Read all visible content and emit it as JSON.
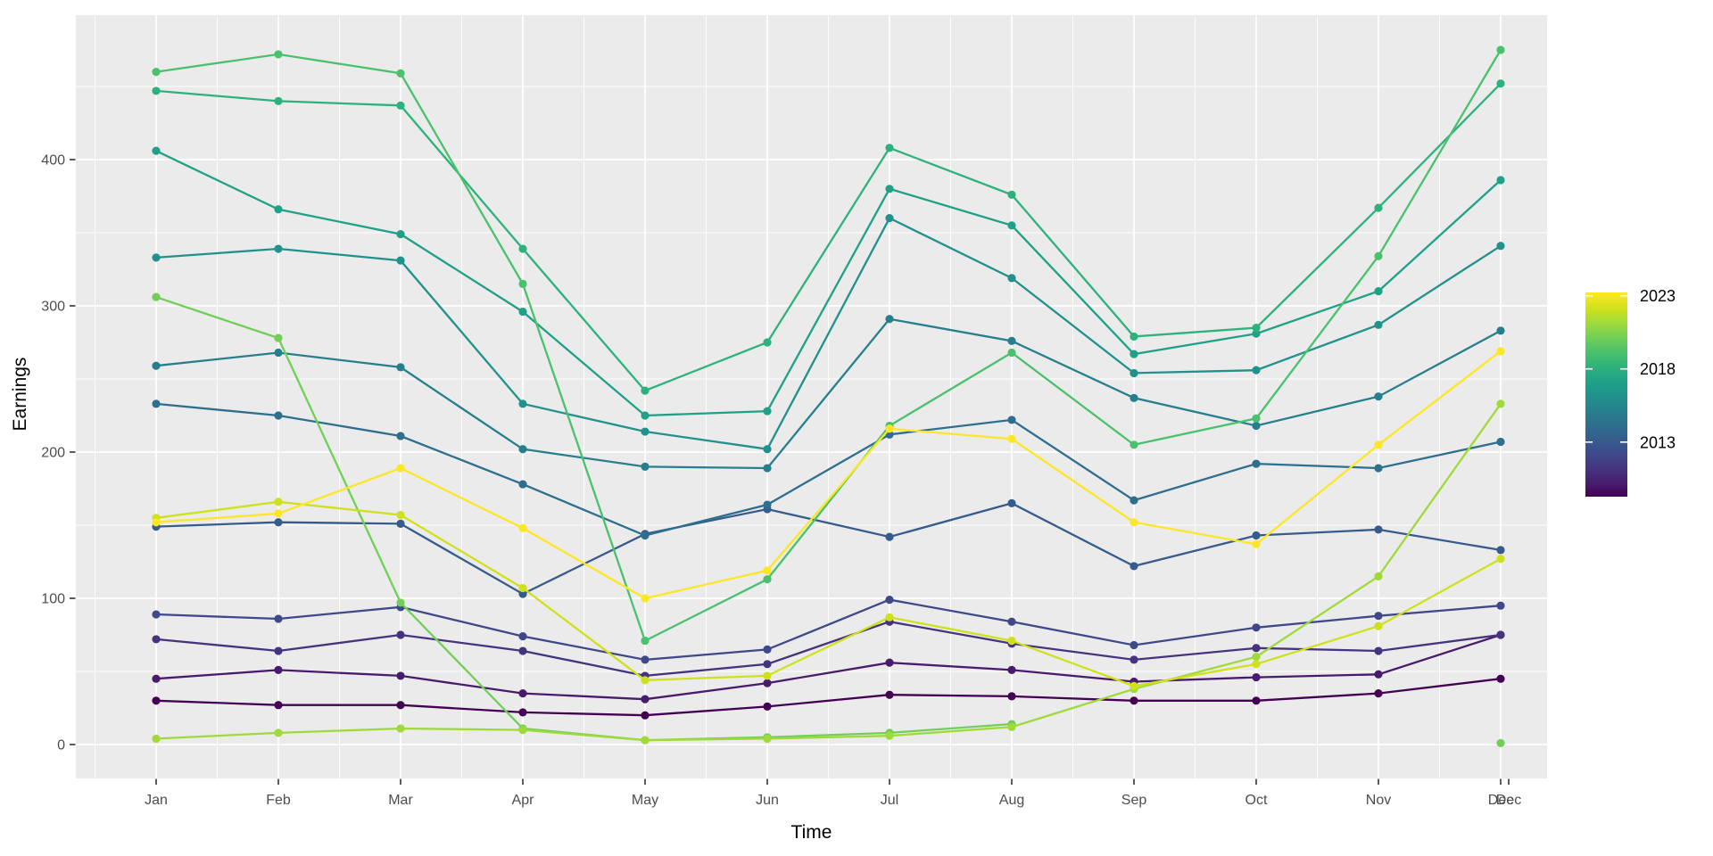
{
  "figure": {
    "background": "#ffffff",
    "panel_background": "#ebebeb",
    "grid_color": "#ffffff",
    "tick_label_color": "#4d4d4d",
    "axis_title_color": "#000000"
  },
  "chart_data": {
    "type": "line",
    "title": "",
    "xlabel": "Time",
    "ylabel": "Earnings",
    "grid": "on",
    "categories": [
      "Jan",
      "Feb",
      "Mar",
      "Apr",
      "May",
      "Jun",
      "Jul",
      "Aug",
      "Sep",
      "Oct",
      "Nov",
      "Dec"
    ],
    "extra_x_tick_label": "Dec",
    "y_ticks": [
      0,
      100,
      200,
      300,
      400
    ],
    "ylim": [
      -23,
      499
    ],
    "legend_position": "right",
    "legend": {
      "tick_labels": [
        "2023",
        "2018",
        "2013"
      ],
      "tick_years": [
        2023,
        2018,
        2013
      ],
      "year_top": 2023.1,
      "year_bottom": 2009.15
    },
    "series": [
      {
        "name": "2009",
        "color": "#440154",
        "values": [
          30,
          27,
          27,
          22,
          20,
          26,
          34,
          33,
          30,
          30,
          35,
          45
        ]
      },
      {
        "name": "2010",
        "color": "#481B6D",
        "values": [
          45,
          51,
          47,
          35,
          31,
          42,
          56,
          51,
          43,
          46,
          48,
          75
        ]
      },
      {
        "name": "2011",
        "color": "#46337E",
        "values": [
          72,
          64,
          75,
          64,
          47,
          55,
          84,
          69,
          58,
          66,
          64,
          75
        ]
      },
      {
        "name": "2012",
        "color": "#3F4889",
        "values": [
          89,
          86,
          94,
          74,
          58,
          65,
          99,
          84,
          68,
          80,
          88,
          95
        ]
      },
      {
        "name": "2013",
        "color": "#365C8D",
        "values": [
          149,
          152,
          151,
          103,
          144,
          161,
          142,
          165,
          122,
          143,
          147,
          133
        ]
      },
      {
        "name": "2014",
        "color": "#2E6E8E",
        "values": [
          233,
          225,
          211,
          178,
          143,
          164,
          212,
          222,
          167,
          192,
          189,
          207
        ]
      },
      {
        "name": "2015",
        "color": "#277F8E",
        "values": [
          259,
          268,
          258,
          202,
          190,
          189,
          291,
          276,
          237,
          218,
          238,
          283
        ]
      },
      {
        "name": "2016",
        "color": "#21918C",
        "values": [
          333,
          339,
          331,
          233,
          214,
          202,
          360,
          319,
          254,
          256,
          287,
          341
        ]
      },
      {
        "name": "2017",
        "color": "#1FA187",
        "values": [
          406,
          366,
          349,
          296,
          225,
          228,
          380,
          355,
          267,
          281,
          310,
          386
        ]
      },
      {
        "name": "2018",
        "color": "#2DB27D",
        "values": [
          447,
          440,
          437,
          339,
          242,
          275,
          408,
          376,
          279,
          285,
          367,
          452
        ]
      },
      {
        "name": "2019",
        "color": "#4AC16D",
        "values": [
          460,
          472,
          459,
          315,
          71,
          113,
          218,
          268,
          205,
          223,
          334,
          475
        ]
      },
      {
        "name": "2020",
        "color": "#71CF57",
        "values": [
          306,
          278,
          97,
          11,
          3,
          5,
          8,
          14,
          null,
          null,
          null,
          1
        ]
      },
      {
        "name": "2021",
        "color": "#9FDA3A",
        "values": [
          4,
          8,
          11,
          10,
          3,
          4,
          6,
          12,
          38,
          60,
          115,
          233
        ]
      },
      {
        "name": "2022",
        "color": "#CFE11C",
        "values": [
          155,
          166,
          157,
          107,
          44,
          47,
          87,
          71,
          40,
          55,
          81,
          127
        ]
      },
      {
        "name": "2023",
        "color": "#FDE725",
        "values": [
          152,
          158,
          189,
          148,
          100,
          119,
          216,
          209,
          152,
          137,
          205,
          269
        ]
      }
    ]
  }
}
